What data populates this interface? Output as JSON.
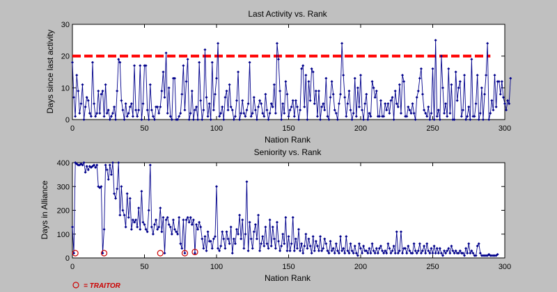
{
  "figure": {
    "background": "#c0c0c0",
    "line_color": "#00008b",
    "threshold_color": "#ff0000",
    "traitor_color": "#cc0000"
  },
  "legend": {
    "marker_icon": "red-circle-icon",
    "label": "= TRAITOR"
  },
  "chart_data": [
    {
      "type": "line",
      "title": "Last Activity vs. Rank",
      "xlabel": "Nation Rank",
      "ylabel": "Days since last activity",
      "xlim": [
        0,
        300
      ],
      "ylim": [
        0,
        30
      ],
      "xticks": [
        0,
        50,
        100,
        150,
        200,
        250,
        300
      ],
      "yticks": [
        0,
        10,
        20,
        30
      ],
      "grid": false,
      "threshold": {
        "y": 20,
        "x_range": [
          0,
          290
        ],
        "style": "dashed"
      },
      "series": [
        {
          "values": [
            18,
            7,
            1,
            14,
            9,
            2,
            5,
            11,
            0,
            4,
            7,
            6,
            2,
            1,
            18,
            5,
            1,
            2,
            9,
            2,
            8,
            9,
            1,
            11,
            2,
            3,
            0,
            1,
            2,
            4,
            0,
            9,
            19,
            18,
            6,
            3,
            0,
            5,
            1,
            2,
            4,
            5,
            1,
            17,
            3,
            1,
            3,
            17,
            0,
            5,
            17,
            17,
            3,
            0,
            11,
            3,
            1,
            0,
            4,
            4,
            2,
            4,
            9,
            15,
            7,
            21,
            2,
            10,
            1,
            0,
            13,
            13,
            0,
            0,
            1,
            2,
            8,
            17,
            3,
            12,
            19,
            0,
            2,
            9,
            0,
            3,
            4,
            0,
            18,
            6,
            0,
            3,
            22,
            7,
            1,
            5,
            0,
            18,
            3,
            8,
            13,
            24,
            1,
            2,
            4,
            0,
            7,
            9,
            3,
            11,
            4,
            3,
            0,
            1,
            6,
            15,
            0,
            2,
            6,
            2,
            1,
            3,
            5,
            18,
            1,
            2,
            7,
            3,
            0,
            4,
            6,
            5,
            2,
            1,
            8,
            3,
            0,
            2,
            5,
            4,
            11,
            2,
            24,
            19,
            9,
            0,
            5,
            2,
            12,
            8,
            1,
            3,
            4,
            6,
            1,
            6,
            4,
            0,
            3,
            16,
            17,
            4,
            14,
            0,
            12,
            6,
            16,
            15,
            5,
            9,
            1,
            9,
            0,
            4,
            5,
            3,
            13,
            1,
            0,
            7,
            12,
            8,
            3,
            2,
            0,
            5,
            8,
            24,
            14,
            7,
            1,
            5,
            9,
            3,
            0,
            2,
            13,
            1,
            10,
            4,
            14,
            3,
            0,
            5,
            8,
            0,
            2,
            1,
            12,
            10,
            7,
            9,
            1,
            1,
            6,
            1,
            1,
            5,
            3,
            5,
            2,
            6,
            7,
            0,
            9,
            5,
            4,
            11,
            2,
            14,
            12,
            1,
            1,
            4,
            3,
            2,
            5,
            2,
            0,
            7,
            9,
            13,
            16,
            8,
            3,
            2,
            1,
            4,
            0,
            2,
            16,
            0,
            25,
            1,
            3,
            0,
            20,
            10,
            2,
            5,
            1,
            16,
            2,
            11,
            0,
            0,
            15,
            6,
            10,
            12,
            1,
            3,
            14,
            0,
            1,
            4,
            0,
            19,
            1,
            1,
            5,
            14,
            0,
            2,
            10,
            0,
            8,
            14,
            24,
            0,
            2,
            6,
            3,
            14,
            4,
            12,
            12,
            8,
            12,
            7,
            5,
            3,
            6,
            5,
            13
          ]
        }
      ]
    },
    {
      "type": "line",
      "title": "Seniority vs. Rank",
      "xlabel": "Nation Rank",
      "ylabel": "Days in Alliance",
      "xlim": [
        0,
        300
      ],
      "ylim": [
        0,
        400
      ],
      "xticks": [
        0,
        50,
        100,
        150,
        200,
        250,
        300
      ],
      "yticks": [
        0,
        100,
        200,
        300,
        400
      ],
      "grid": false,
      "series": [
        {
          "values": [
            130,
            20,
            400,
            395,
            390,
            390,
            395,
            390,
            400,
            360,
            385,
            370,
            385,
            380,
            385,
            390,
            380,
            390,
            300,
            295,
            300,
            20,
            120,
            390,
            370,
            330,
            390,
            350,
            400,
            270,
            250,
            290,
            400,
            180,
            300,
            200,
            180,
            130,
            270,
            170,
            250,
            120,
            160,
            150,
            160,
            130,
            210,
            120,
            280,
            150,
            140,
            120,
            110,
            200,
            390,
            130,
            100,
            140,
            160,
            120,
            130,
            210,
            110,
            170,
            20,
            160,
            170,
            140,
            130,
            100,
            160,
            120,
            110,
            100,
            170,
            60,
            40,
            160,
            20,
            160,
            170,
            150,
            170,
            140,
            160,
            20,
            140,
            120,
            150,
            130,
            80,
            40,
            90,
            30,
            110,
            70,
            70,
            40,
            80,
            90,
            300,
            40,
            30,
            50,
            110,
            80,
            40,
            110,
            80,
            60,
            130,
            20,
            80,
            60,
            120,
            100,
            180,
            80,
            160,
            40,
            100,
            320,
            30,
            150,
            80,
            40,
            110,
            140,
            80,
            180,
            30,
            60,
            90,
            50,
            130,
            60,
            40,
            160,
            50,
            130,
            80,
            40,
            150,
            70,
            30,
            50,
            100,
            60,
            170,
            30,
            90,
            30,
            60,
            170,
            30,
            80,
            40,
            120,
            30,
            60,
            20,
            50,
            100,
            40,
            80,
            50,
            20,
            90,
            30,
            70,
            50,
            30,
            90,
            30,
            40,
            80,
            60,
            30,
            20,
            70,
            30,
            40,
            20,
            60,
            30,
            20,
            90,
            30,
            40,
            20,
            90,
            30,
            20,
            60,
            30,
            20,
            50,
            20,
            10,
            60,
            40,
            20,
            50,
            30,
            30,
            20,
            40,
            20,
            60,
            30,
            20,
            40,
            20,
            40,
            50,
            30,
            20,
            30,
            20,
            60,
            40,
            20,
            30,
            50,
            20,
            110,
            20,
            30,
            110,
            20,
            40,
            40,
            20,
            50,
            30,
            20,
            20,
            60,
            30,
            20,
            30,
            60,
            20,
            30,
            50,
            20,
            60,
            30,
            20,
            40,
            20,
            50,
            20,
            40,
            20,
            40,
            20,
            10,
            30,
            20,
            30,
            40,
            20,
            50,
            30,
            20,
            30,
            20,
            20,
            30,
            20,
            20,
            10,
            40,
            20,
            60,
            20,
            30,
            20,
            10,
            10,
            50,
            60,
            20,
            10,
            10,
            10,
            10,
            10,
            15,
            10,
            10,
            10,
            10,
            10,
            15
          ]
        }
      ],
      "traitor_ranks": [
        2,
        22,
        61,
        78,
        85
      ],
      "traitor_values": [
        20,
        20,
        20,
        20,
        25
      ]
    }
  ]
}
